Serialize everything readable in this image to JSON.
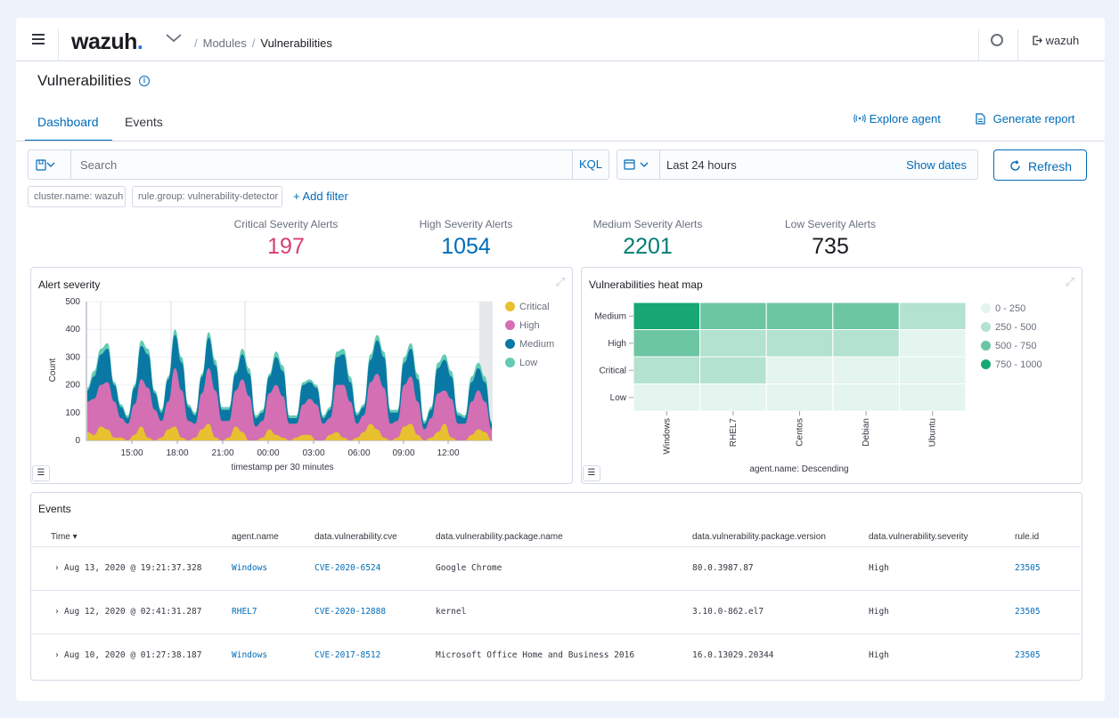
{
  "header": {
    "logo": "wazuh",
    "breadcrumb": [
      "Modules",
      "Vulnerabilities"
    ],
    "user": "wazuh"
  },
  "page": {
    "title": "Vulnerabilities",
    "tabs": [
      {
        "label": "Dashboard",
        "active": true
      },
      {
        "label": "Events",
        "active": false
      }
    ],
    "actions": {
      "explore_agent": "Explore agent",
      "generate_report": "Generate report"
    }
  },
  "search": {
    "placeholder": "Search",
    "language": "KQL"
  },
  "time": {
    "range": "Last 24 hours",
    "show_dates": "Show dates",
    "refresh": "Refresh"
  },
  "filters": {
    "pills": [
      "cluster.name: wazuh",
      "rule.group: vulnerability-detector"
    ],
    "add": "+ Add filter"
  },
  "metrics": [
    {
      "label": "Critical Severity Alerts",
      "value": "197",
      "color": "#d6406f"
    },
    {
      "label": "High Severity Alerts",
      "value": "1054",
      "color": "#006bb8"
    },
    {
      "label": "Medium Severity Alerts",
      "value": "2201",
      "color": "#017d73"
    },
    {
      "label": "Low Severity Alerts",
      "value": "735",
      "color": "#1a1c21"
    }
  ],
  "severity_chart": {
    "title": "Alert severity",
    "ylabel": "Count",
    "xlabel": "timestamp per 30 minutes",
    "legend": [
      "Critical",
      "High",
      "Medium",
      "Low"
    ],
    "colors": {
      "Critical": "#e7c12f",
      "High": "#d36fb2",
      "Medium": "#0a78a4",
      "Low": "#62cbb5"
    }
  },
  "heatmap": {
    "title": "Vulnerabilities heat map",
    "xlabel": "agent.name: Descending",
    "legend": [
      "0 - 250",
      "250 - 500",
      "500 - 750",
      "750 - 1000"
    ],
    "legend_colors": [
      "#e4f4ee",
      "#b3e2cf",
      "#6cc6a2",
      "#17a874"
    ]
  },
  "events": {
    "title": "Events",
    "columns": [
      "Time",
      "agent.name",
      "data.vulnerability.cve",
      "data.vulnerability.package.name",
      "data.vulnerability.package.version",
      "data.vulnerability.severity",
      "rule.id"
    ],
    "rows": [
      {
        "time": "Aug 13, 2020 @ 19:21:37.328",
        "agent": "Windows",
        "cve": "CVE-2020-6524",
        "package": "Google Chrome",
        "version": "80.0.3987.87",
        "severity": "High",
        "rule": "23505"
      },
      {
        "time": "Aug 12, 2020 @ 02:41:31.287",
        "agent": "RHEL7",
        "cve": "CVE-2020-12888",
        "package": "kernel",
        "version": "3.10.0-862.el7",
        "severity": "High",
        "rule": "23505"
      },
      {
        "time": "Aug 10, 2020 @ 01:27:38.187",
        "agent": "Windows",
        "cve": "CVE-2017-8512",
        "package": "Microsoft Office Home and Business 2016",
        "version": "16.0.13029.20344",
        "severity": "High",
        "rule": "23505"
      }
    ]
  },
  "chart_data": [
    {
      "type": "area",
      "title": "Alert severity",
      "xlabel": "timestamp per 30 minutes",
      "ylabel": "Count",
      "ylim": [
        0,
        500
      ],
      "x_ticks": [
        "15:00",
        "18:00",
        "21:00",
        "00:00",
        "03:00",
        "06:00",
        "09:00",
        "12:00"
      ],
      "y_ticks": [
        0,
        100,
        200,
        300,
        400,
        500
      ],
      "stacked": true,
      "legend": "right",
      "series": [
        {
          "name": "Critical",
          "values": [
            30,
            20,
            50,
            40,
            10,
            10,
            0,
            20,
            50,
            10,
            0,
            10,
            40,
            50,
            10,
            0,
            10,
            40,
            60,
            10,
            0,
            10,
            50,
            30,
            0,
            0,
            10,
            40,
            20,
            10,
            0,
            10,
            20,
            20,
            0,
            0,
            20,
            30,
            10,
            0,
            10,
            30,
            60,
            40,
            10,
            0,
            10,
            50,
            60,
            20,
            0,
            10,
            30,
            60,
            10,
            0,
            0,
            20,
            40,
            30,
            0
          ]
        },
        {
          "name": "High",
          "values": [
            110,
            130,
            150,
            170,
            130,
            70,
            60,
            110,
            170,
            180,
            110,
            60,
            100,
            210,
            170,
            70,
            50,
            130,
            200,
            170,
            70,
            60,
            130,
            190,
            160,
            50,
            60,
            130,
            180,
            150,
            60,
            50,
            110,
            130,
            130,
            60,
            60,
            170,
            190,
            140,
            50,
            60,
            150,
            200,
            180,
            60,
            60,
            150,
            170,
            120,
            40,
            70,
            140,
            120,
            140,
            60,
            60,
            120,
            140,
            110,
            40
          ]
        },
        {
          "name": "Medium",
          "values": [
            40,
            80,
            110,
            120,
            60,
            40,
            20,
            60,
            120,
            120,
            60,
            30,
            80,
            120,
            100,
            50,
            30,
            60,
            110,
            90,
            40,
            40,
            60,
            90,
            80,
            30,
            30,
            60,
            100,
            90,
            20,
            20,
            70,
            60,
            60,
            20,
            30,
            100,
            110,
            70,
            30,
            30,
            80,
            120,
            110,
            40,
            30,
            80,
            100,
            80,
            20,
            30,
            90,
            110,
            80,
            30,
            20,
            70,
            80,
            70,
            20
          ]
        },
        {
          "name": "Low",
          "values": [
            10,
            20,
            20,
            20,
            10,
            10,
            10,
            10,
            20,
            20,
            10,
            10,
            10,
            20,
            20,
            10,
            10,
            10,
            20,
            20,
            10,
            10,
            10,
            20,
            20,
            10,
            10,
            10,
            20,
            20,
            10,
            10,
            10,
            10,
            10,
            10,
            10,
            20,
            20,
            20,
            10,
            10,
            20,
            20,
            20,
            10,
            10,
            20,
            20,
            20,
            10,
            10,
            20,
            20,
            20,
            10,
            10,
            20,
            20,
            20,
            10
          ]
        }
      ]
    },
    {
      "type": "heatmap",
      "title": "Vulnerabilities heat map",
      "xlabel": "agent.name: Descending",
      "x": [
        "Windows",
        "RHEL7",
        "Centos",
        "Debian",
        "Ubuntu"
      ],
      "y": [
        "Medium",
        "High",
        "Critical",
        "Low"
      ],
      "bins": [
        "0 - 250",
        "250 - 500",
        "500 - 750",
        "750 - 1000"
      ],
      "values": [
        [
          3,
          2,
          2,
          2,
          1
        ],
        [
          2,
          1,
          1,
          1,
          0
        ],
        [
          1,
          1,
          0,
          0,
          0
        ],
        [
          0,
          0,
          0,
          0,
          0
        ]
      ]
    }
  ]
}
